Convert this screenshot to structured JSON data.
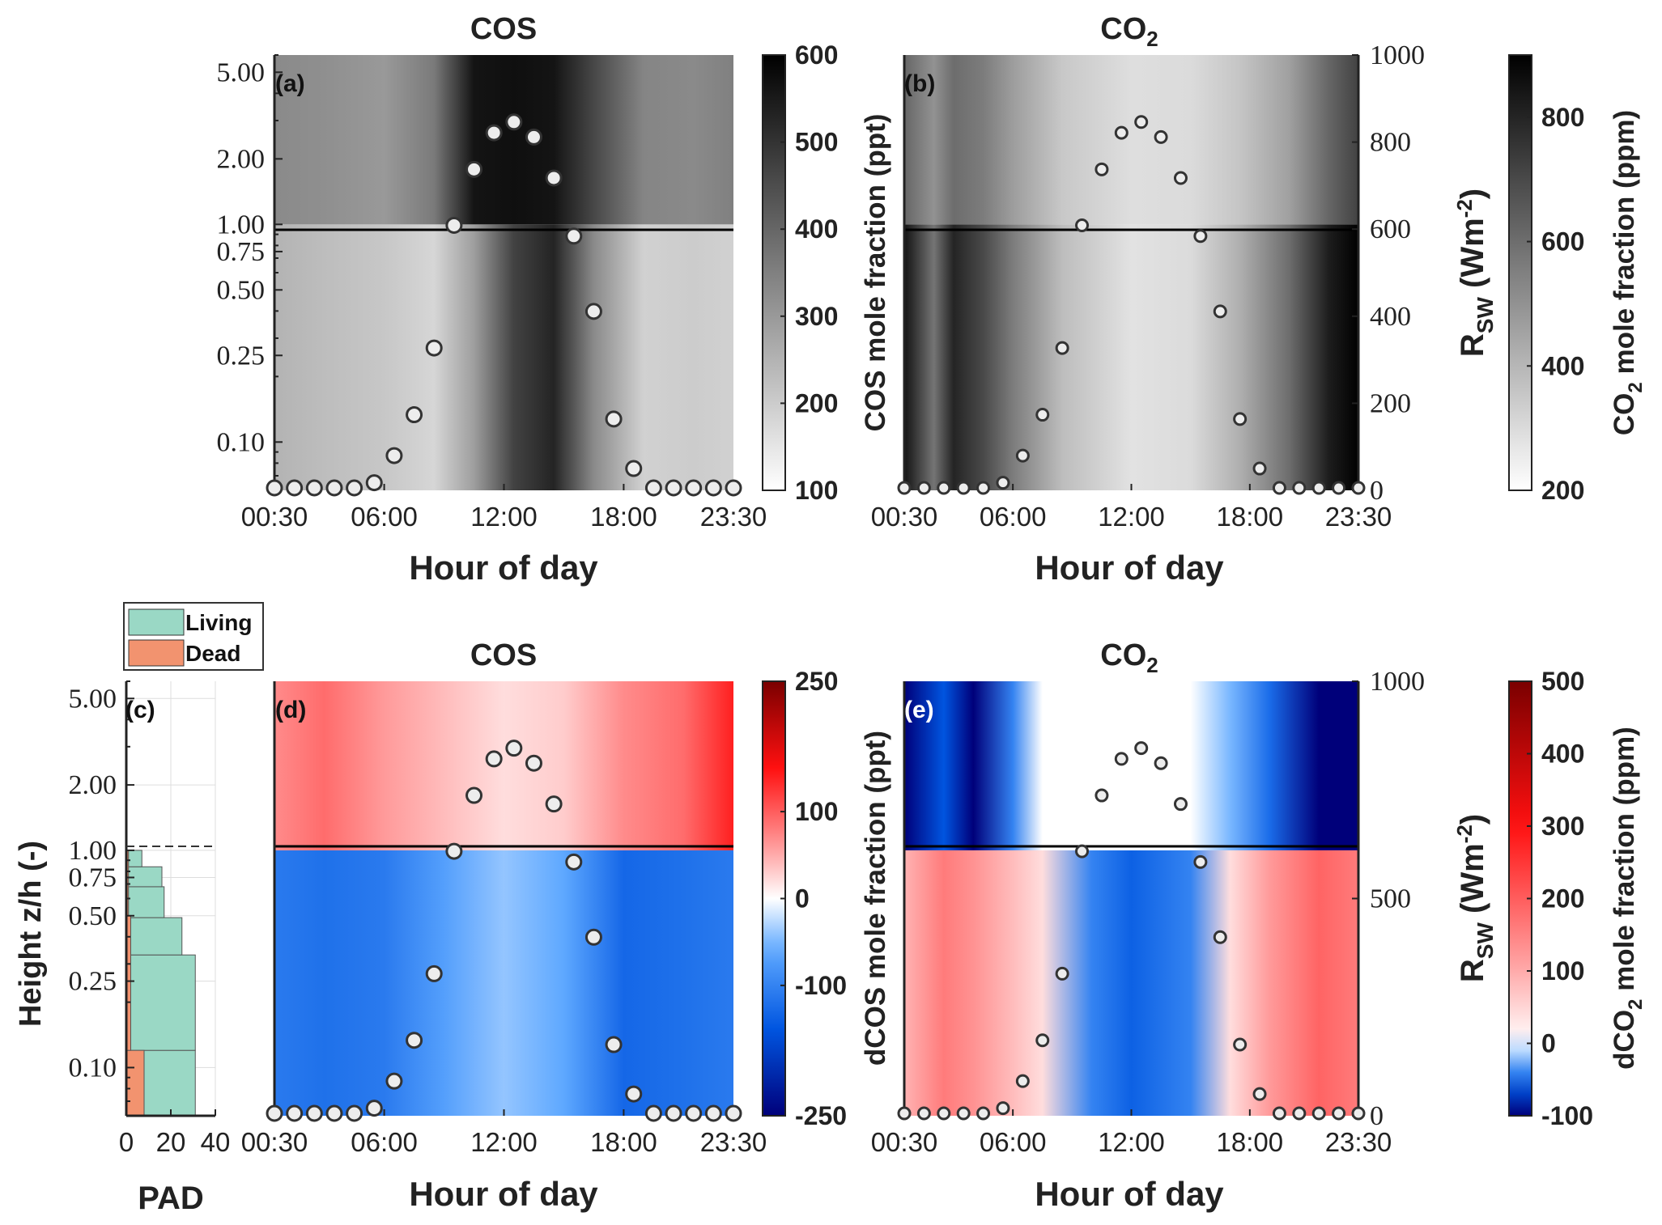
{
  "chart_data": [
    {
      "panel_label": "(a)",
      "title": "COS",
      "type": "heatmap",
      "xlabel": "Hour of day",
      "x_ticks": [
        "00:30",
        "06:00",
        "12:00",
        "18:00",
        "23:30"
      ],
      "y_ticks": [
        "0.10",
        "0.25",
        "0.50",
        "0.75",
        "1.00",
        "2.00",
        "5.00"
      ],
      "y_scale": "log",
      "ylim": [
        0.06,
        6.0
      ],
      "canopy_line": 1.0,
      "colorbar": {
        "label": "COS mole fraction (ppt)",
        "ticks": [
          100,
          200,
          300,
          400,
          500,
          600
        ],
        "range": [
          100,
          600
        ],
        "colormap": "white-to-black"
      },
      "rsw_axis": {
        "label": "R_SW (Wm-2)",
        "ticks": [],
        "range": [
          0,
          1000
        ]
      },
      "field_columns": [
        {
          "hour": 0.5,
          "below": 250,
          "above": 330
        },
        {
          "hour": 3,
          "below": 230,
          "above": 320
        },
        {
          "hour": 6,
          "below": 210,
          "above": 300
        },
        {
          "hour": 8.5,
          "below": 180,
          "above": 360
        },
        {
          "hour": 10.5,
          "below": 290,
          "above": 560
        },
        {
          "hour": 12.5,
          "below": 470,
          "above": 570
        },
        {
          "hour": 14.5,
          "below": 530,
          "above": 560
        },
        {
          "hour": 16.5,
          "below": 330,
          "above": 460
        },
        {
          "hour": 19,
          "below": 190,
          "above": 340
        },
        {
          "hour": 21.5,
          "below": 200,
          "above": 330
        },
        {
          "hour": 23.5,
          "below": 190,
          "above": 350
        }
      ],
      "rsw_points": {
        "hours": [
          0.5,
          1.5,
          2.5,
          3.5,
          4.5,
          5.5,
          6.5,
          7.5,
          8.5,
          9.5,
          10.5,
          11.5,
          12.5,
          13.5,
          14.5,
          15.5,
          16.5,
          17.5,
          18.5,
          19.5,
          20.5,
          21.5,
          22.5,
          23.5
        ],
        "values": [
          0,
          0,
          0,
          0,
          0,
          12,
          75,
          170,
          325,
          610,
          740,
          825,
          850,
          815,
          720,
          585,
          410,
          160,
          45,
          0,
          0,
          0,
          0,
          0
        ]
      }
    },
    {
      "panel_label": "(b)",
      "title": "CO2",
      "type": "heatmap",
      "xlabel": "Hour of day",
      "x_ticks": [
        "00:30",
        "06:00",
        "12:00",
        "18:00",
        "23:30"
      ],
      "y_scale": "log",
      "ylim": [
        0.06,
        6.0
      ],
      "canopy_line": 1.0,
      "colorbar": {
        "label": "CO2 mole fraction (ppm)",
        "ticks": [
          200,
          400,
          600,
          800
        ],
        "range": [
          200,
          900
        ],
        "colormap": "white-to-black"
      },
      "rsw_axis": {
        "label": "R_SW (Wm-2)",
        "ticks": [
          0,
          200,
          400,
          600,
          800,
          1000
        ],
        "range": [
          0,
          1000
        ]
      },
      "field_columns": [
        {
          "hour": 0.5,
          "below": 850,
          "above": 620
        },
        {
          "hour": 2,
          "below": 580,
          "above": 500
        },
        {
          "hour": 3,
          "below": 800,
          "above": 600
        },
        {
          "hour": 4.5,
          "below": 700,
          "above": 560
        },
        {
          "hour": 6,
          "below": 560,
          "above": 470
        },
        {
          "hour": 8.5,
          "below": 380,
          "above": 350
        },
        {
          "hour": 12,
          "below": 280,
          "above": 290
        },
        {
          "hour": 15,
          "below": 300,
          "above": 300
        },
        {
          "hour": 17.5,
          "below": 420,
          "above": 360
        },
        {
          "hour": 20,
          "below": 600,
          "above": 460
        },
        {
          "hour": 22,
          "below": 820,
          "above": 620
        },
        {
          "hour": 23.5,
          "below": 900,
          "above": 720
        }
      ],
      "rsw_points": {
        "hours": [
          0.5,
          1.5,
          2.5,
          3.5,
          4.5,
          5.5,
          6.5,
          7.5,
          8.5,
          9.5,
          10.5,
          11.5,
          12.5,
          13.5,
          14.5,
          15.5,
          16.5,
          17.5,
          18.5,
          19.5,
          20.5,
          21.5,
          22.5,
          23.5
        ],
        "values": [
          0,
          0,
          0,
          0,
          0,
          12,
          75,
          170,
          325,
          610,
          740,
          825,
          850,
          815,
          720,
          585,
          410,
          160,
          45,
          0,
          0,
          0,
          0,
          0
        ]
      }
    },
    {
      "panel_label": "(c)",
      "type": "bar",
      "orientation": "horizontal-step",
      "xlabel": "PAD",
      "ylabel": "Height z/h (-)",
      "x_ticks": [
        0,
        20,
        40
      ],
      "xlim": [
        0,
        40
      ],
      "y_ticks": [
        "0.10",
        "0.25",
        "0.50",
        "0.75",
        "1.00",
        "2.00",
        "5.00"
      ],
      "y_scale": "log",
      "ylim": [
        0.06,
        6.0
      ],
      "canopy_line": 1.0,
      "legend": {
        "position": "top",
        "entries": [
          {
            "name": "Living",
            "color": "#9ad8c5"
          },
          {
            "name": "Dead",
            "color": "#f2936f"
          }
        ]
      },
      "series": [
        {
          "name": "Living",
          "color": "#9ad8c5",
          "bins": [
            {
              "z_low": 0.06,
              "z_high": 0.12,
              "total": 31
            },
            {
              "z_low": 0.12,
              "z_high": 0.33,
              "total": 31
            },
            {
              "z_low": 0.33,
              "z_high": 0.49,
              "total": 25
            },
            {
              "z_low": 0.49,
              "z_high": 0.68,
              "total": 17
            },
            {
              "z_low": 0.68,
              "z_high": 0.84,
              "total": 16
            },
            {
              "z_low": 0.84,
              "z_high": 1.0,
              "total": 7
            }
          ]
        },
        {
          "name": "Dead",
          "color": "#f2936f",
          "bins": [
            {
              "z_low": 0.06,
              "z_high": 0.12,
              "total": 8
            },
            {
              "z_low": 0.12,
              "z_high": 0.5,
              "total": 2
            },
            {
              "z_low": 0.5,
              "z_high": 1.0,
              "total": 1
            }
          ]
        }
      ]
    },
    {
      "panel_label": "(d)",
      "title": "COS",
      "type": "heatmap",
      "xlabel": "Hour of day",
      "x_ticks": [
        "00:30",
        "06:00",
        "12:00",
        "18:00",
        "23:30"
      ],
      "y_scale": "log",
      "ylim": [
        0.06,
        6.0
      ],
      "canopy_line": 1.0,
      "colorbar": {
        "label": "dCOS mole fraction (ppt)",
        "ticks": [
          -250,
          -100,
          0,
          100,
          250
        ],
        "range": [
          -250,
          250
        ],
        "colormap": "blue-white-red"
      },
      "rsw_axis": {
        "label": "R_SW (Wm-2)",
        "ticks": [],
        "range": [
          0,
          1000
        ]
      },
      "field_columns": [
        {
          "hour": 0.5,
          "below": -110,
          "above": 70
        },
        {
          "hour": 3,
          "below": -120,
          "above": 90
        },
        {
          "hour": 6,
          "below": -110,
          "above": 60
        },
        {
          "hour": 9,
          "below": -70,
          "above": 40
        },
        {
          "hour": 12,
          "below": -40,
          "above": 20
        },
        {
          "hour": 15,
          "below": -60,
          "above": 30
        },
        {
          "hour": 18,
          "below": -130,
          "above": 70
        },
        {
          "hour": 21,
          "below": -120,
          "above": 90
        },
        {
          "hour": 23.5,
          "below": -110,
          "above": 140
        }
      ],
      "rsw_points": {
        "hours": [
          0.5,
          1.5,
          2.5,
          3.5,
          4.5,
          5.5,
          6.5,
          7.5,
          8.5,
          9.5,
          10.5,
          11.5,
          12.5,
          13.5,
          14.5,
          15.5,
          16.5,
          17.5,
          18.5,
          19.5,
          20.5,
          21.5,
          22.5,
          23.5
        ],
        "values": [
          0,
          0,
          0,
          0,
          0,
          12,
          75,
          170,
          325,
          610,
          740,
          825,
          850,
          815,
          720,
          585,
          410,
          160,
          45,
          0,
          0,
          0,
          0,
          0
        ]
      }
    },
    {
      "panel_label": "(e)",
      "title": "CO2",
      "type": "heatmap",
      "xlabel": "Hour of day",
      "x_ticks": [
        "00:30",
        "06:00",
        "12:00",
        "18:00",
        "23:30"
      ],
      "y_scale": "log",
      "ylim": [
        0.06,
        6.0
      ],
      "canopy_line": 1.0,
      "colorbar": {
        "label": "dCO2 mole fraction (ppm)",
        "ticks": [
          -100,
          0,
          100,
          200,
          300,
          400,
          500
        ],
        "range": [
          -100,
          500
        ],
        "colormap": "blue-white-red"
      },
      "rsw_axis": {
        "label": "R_SW (Wm-2)",
        "ticks": [
          0,
          500,
          1000
        ],
        "range": [
          0,
          1000
        ]
      },
      "field_columns": [
        {
          "hour": 0.5,
          "below": 90,
          "above": -100
        },
        {
          "hour": 2.5,
          "below": 160,
          "above": -60
        },
        {
          "hour": 4,
          "below": 130,
          "above": -100
        },
        {
          "hour": 6,
          "below": 80,
          "above": -40
        },
        {
          "hour": 7.5,
          "below": 40,
          "above": 0
        },
        {
          "hour": 10,
          "below": -40,
          "above": 0
        },
        {
          "hour": 12,
          "below": -55,
          "above": 0
        },
        {
          "hour": 15,
          "below": -40,
          "above": 0
        },
        {
          "hour": 17,
          "below": 40,
          "above": -20
        },
        {
          "hour": 19,
          "below": 120,
          "above": -50
        },
        {
          "hour": 21.5,
          "below": 190,
          "above": -100
        },
        {
          "hour": 23.5,
          "below": 160,
          "above": -100
        }
      ],
      "rsw_points": {
        "hours": [
          0.5,
          1.5,
          2.5,
          3.5,
          4.5,
          5.5,
          6.5,
          7.5,
          8.5,
          9.5,
          10.5,
          11.5,
          12.5,
          13.5,
          14.5,
          15.5,
          16.5,
          17.5,
          18.5,
          19.5,
          20.5,
          21.5,
          22.5,
          23.5
        ],
        "values": [
          0,
          0,
          0,
          0,
          0,
          12,
          75,
          170,
          325,
          610,
          740,
          825,
          850,
          815,
          720,
          585,
          410,
          160,
          45,
          0,
          0,
          0,
          0,
          0
        ]
      }
    }
  ]
}
